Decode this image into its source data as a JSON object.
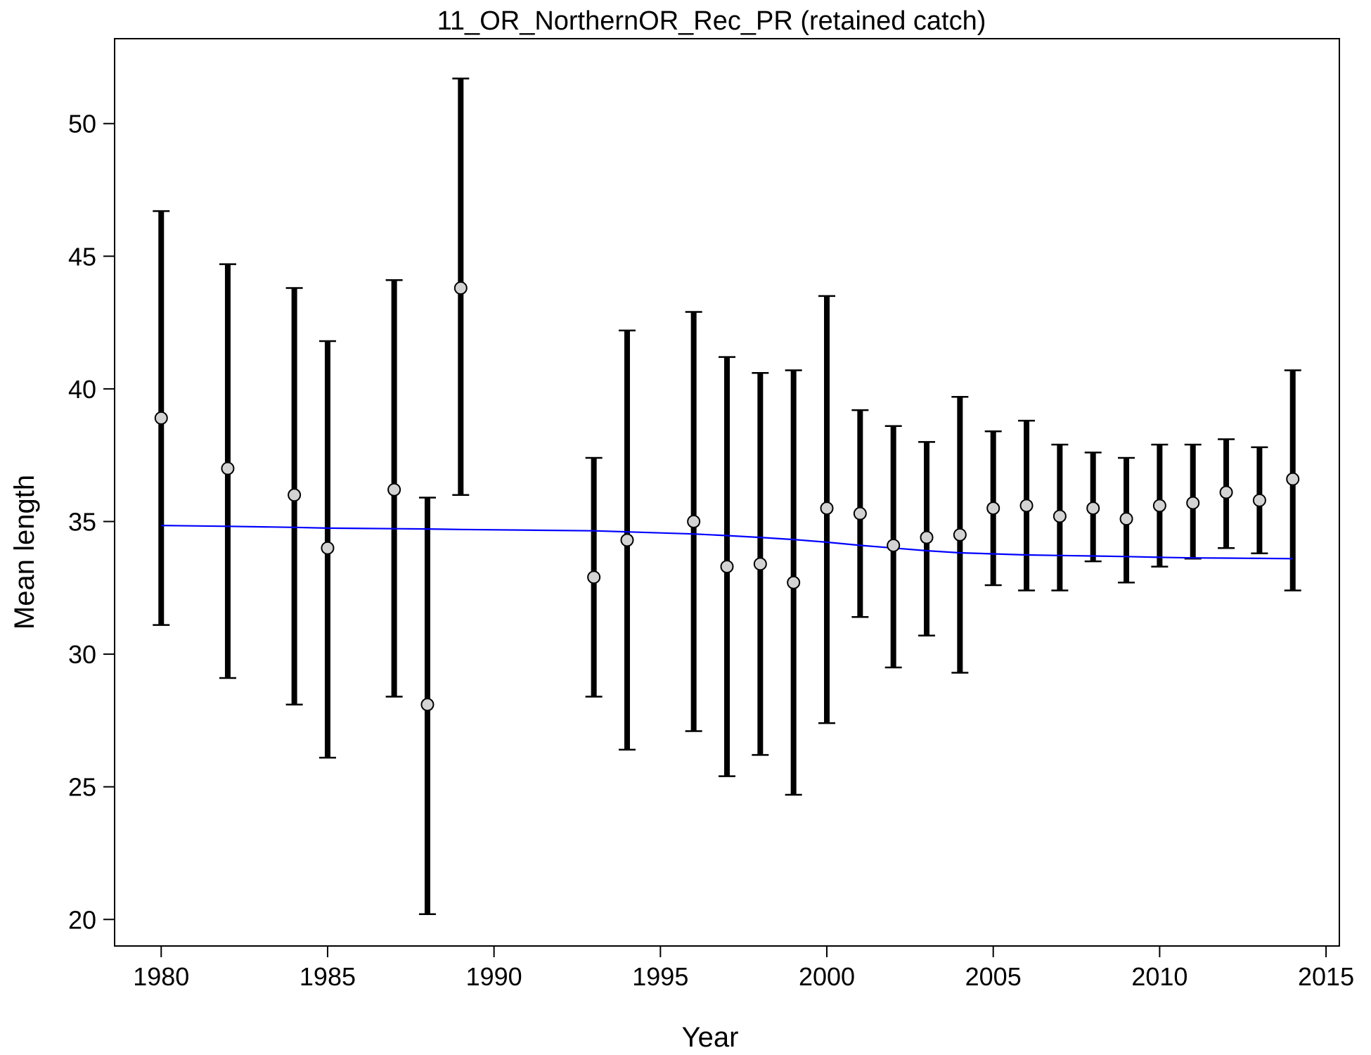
{
  "chart_data": {
    "type": "scatter",
    "title": "11_OR_NorthernOR_Rec_PR (retained catch)",
    "xlabel": "Year",
    "ylabel": "Mean length",
    "xlim": [
      1978.6,
      2015.4
    ],
    "ylim": [
      19.0,
      53.2
    ],
    "xticks": [
      1980,
      1985,
      1990,
      1995,
      2000,
      2005,
      2010,
      2015
    ],
    "yticks": [
      20,
      25,
      30,
      35,
      40,
      45,
      50
    ],
    "grid": false,
    "observed": {
      "marker": "circle",
      "marker_fill": "#d3d3d3",
      "points": [
        {
          "x": 1980,
          "y": 38.9,
          "lo": 31.1,
          "hi": 46.7
        },
        {
          "x": 1982,
          "y": 37.0,
          "lo": 29.1,
          "hi": 44.7
        },
        {
          "x": 1984,
          "y": 36.0,
          "lo": 28.1,
          "hi": 43.8
        },
        {
          "x": 1985,
          "y": 34.0,
          "lo": 26.1,
          "hi": 41.8
        },
        {
          "x": 1987,
          "y": 36.2,
          "lo": 28.4,
          "hi": 44.1
        },
        {
          "x": 1988,
          "y": 28.1,
          "lo": 20.2,
          "hi": 35.9
        },
        {
          "x": 1989,
          "y": 43.8,
          "lo": 36.0,
          "hi": 51.7
        },
        {
          "x": 1993,
          "y": 32.9,
          "lo": 28.4,
          "hi": 37.4
        },
        {
          "x": 1994,
          "y": 34.3,
          "lo": 26.4,
          "hi": 42.2
        },
        {
          "x": 1996,
          "y": 35.0,
          "lo": 27.1,
          "hi": 42.9
        },
        {
          "x": 1997,
          "y": 33.3,
          "lo": 25.4,
          "hi": 41.2
        },
        {
          "x": 1998,
          "y": 33.4,
          "lo": 26.2,
          "hi": 40.6
        },
        {
          "x": 1999,
          "y": 32.7,
          "lo": 24.7,
          "hi": 40.7
        },
        {
          "x": 2000,
          "y": 35.5,
          "lo": 27.4,
          "hi": 43.5
        },
        {
          "x": 2001,
          "y": 35.3,
          "lo": 31.4,
          "hi": 39.2
        },
        {
          "x": 2002,
          "y": 34.1,
          "lo": 29.5,
          "hi": 38.6
        },
        {
          "x": 2003,
          "y": 34.4,
          "lo": 30.7,
          "hi": 38.0
        },
        {
          "x": 2004,
          "y": 34.5,
          "lo": 29.3,
          "hi": 39.7
        },
        {
          "x": 2005,
          "y": 35.5,
          "lo": 32.6,
          "hi": 38.4
        },
        {
          "x": 2006,
          "y": 35.6,
          "lo": 32.4,
          "hi": 38.8
        },
        {
          "x": 2007,
          "y": 35.2,
          "lo": 32.4,
          "hi": 37.9
        },
        {
          "x": 2008,
          "y": 35.5,
          "lo": 33.5,
          "hi": 37.6
        },
        {
          "x": 2009,
          "y": 35.1,
          "lo": 32.7,
          "hi": 37.4
        },
        {
          "x": 2010,
          "y": 35.6,
          "lo": 33.3,
          "hi": 37.9
        },
        {
          "x": 2011,
          "y": 35.7,
          "lo": 33.6,
          "hi": 37.9
        },
        {
          "x": 2012,
          "y": 36.1,
          "lo": 34.0,
          "hi": 38.1
        },
        {
          "x": 2013,
          "y": 35.8,
          "lo": 33.8,
          "hi": 37.8
        },
        {
          "x": 2014,
          "y": 36.6,
          "lo": 32.4,
          "hi": 40.7
        }
      ]
    },
    "expected": {
      "color": "#0000ff",
      "points": [
        {
          "x": 1980,
          "y": 34.85
        },
        {
          "x": 1982,
          "y": 34.82
        },
        {
          "x": 1984,
          "y": 34.78
        },
        {
          "x": 1985,
          "y": 34.75
        },
        {
          "x": 1987,
          "y": 34.73
        },
        {
          "x": 1988,
          "y": 34.72
        },
        {
          "x": 1989,
          "y": 34.7
        },
        {
          "x": 1993,
          "y": 34.65
        },
        {
          "x": 1994,
          "y": 34.61
        },
        {
          "x": 1996,
          "y": 34.53
        },
        {
          "x": 1997,
          "y": 34.47
        },
        {
          "x": 1998,
          "y": 34.4
        },
        {
          "x": 1999,
          "y": 34.32
        },
        {
          "x": 2000,
          "y": 34.22
        },
        {
          "x": 2001,
          "y": 34.1
        },
        {
          "x": 2002,
          "y": 34.0
        },
        {
          "x": 2003,
          "y": 33.9
        },
        {
          "x": 2004,
          "y": 33.82
        },
        {
          "x": 2005,
          "y": 33.78
        },
        {
          "x": 2006,
          "y": 33.74
        },
        {
          "x": 2007,
          "y": 33.72
        },
        {
          "x": 2008,
          "y": 33.7
        },
        {
          "x": 2009,
          "y": 33.68
        },
        {
          "x": 2010,
          "y": 33.65
        },
        {
          "x": 2011,
          "y": 33.63
        },
        {
          "x": 2012,
          "y": 33.62
        },
        {
          "x": 2013,
          "y": 33.61
        },
        {
          "x": 2014,
          "y": 33.6
        }
      ]
    }
  }
}
